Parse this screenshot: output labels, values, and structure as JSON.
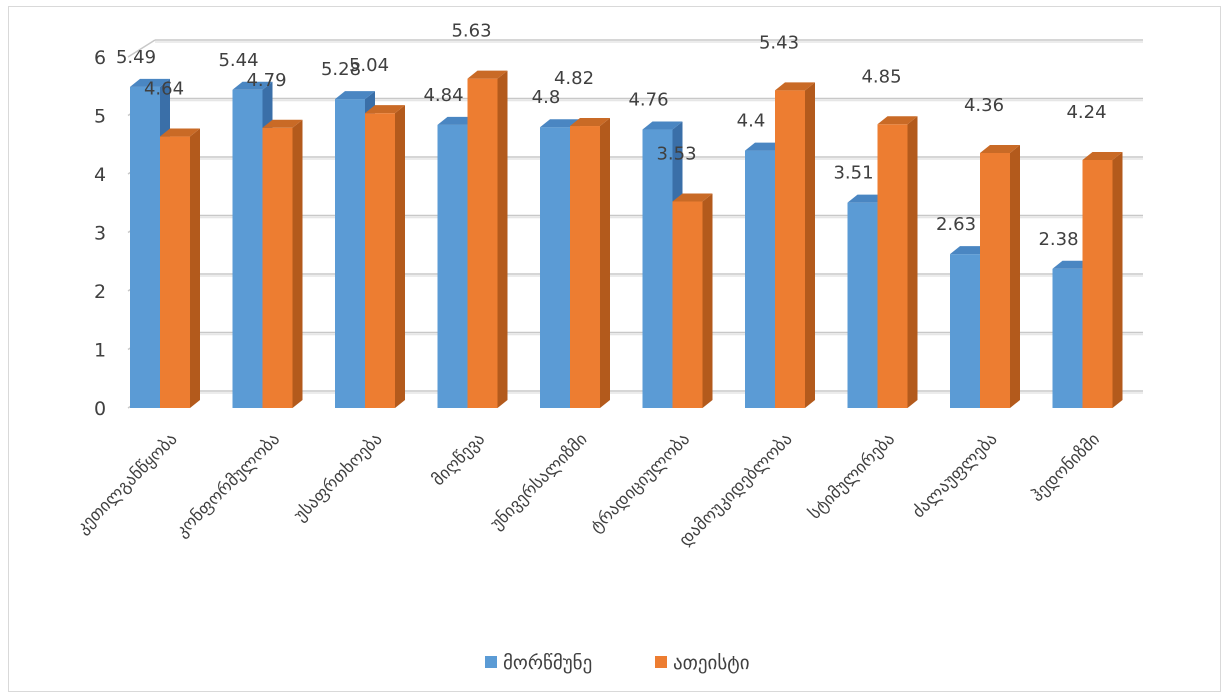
{
  "chart_data": {
    "type": "bar",
    "title": "",
    "xlabel": "",
    "ylabel": "",
    "ylim": [
      0,
      6
    ],
    "yticks": [
      "0",
      "1",
      "2",
      "3",
      "4",
      "5",
      "6"
    ],
    "grid": true,
    "legend_position": "bottom",
    "categories": [
      "კეთილგანწყობა",
      "კონფორმულობა",
      "უსაფრთხოება",
      "მიღწევა",
      "უნივერსალიზმი",
      "ტრადიციულობა",
      "დამოუკიდებლობა",
      "სტიმულირება",
      "ძალაუფლება",
      "ჰედონიზმი"
    ],
    "series": [
      {
        "name": "მორწმუნე",
        "color": "#5b9bd5",
        "side_color": "#3a6fa8",
        "top_color": "#4a86c2",
        "values": [
          5.49,
          5.44,
          5.28,
          4.84,
          4.8,
          4.76,
          4.4,
          3.51,
          2.63,
          2.38
        ],
        "labels": [
          "5.49",
          "5.44",
          "5.28",
          "4.84",
          "4.8",
          "4.76",
          "4.4",
          "3.51",
          "2.63",
          "2.38"
        ]
      },
      {
        "name": "ათეისტი",
        "color": "#ed7d31",
        "side_color": "#b35a1c",
        "top_color": "#c96a26",
        "values": [
          4.64,
          4.79,
          5.04,
          5.63,
          4.82,
          3.53,
          5.43,
          4.85,
          4.36,
          4.24
        ],
        "labels": [
          "4.64",
          "4.79",
          "5.04",
          "5.63",
          "4.82",
          "3.53",
          "5.43",
          "4.85",
          "4.36",
          "4.24"
        ]
      }
    ]
  }
}
